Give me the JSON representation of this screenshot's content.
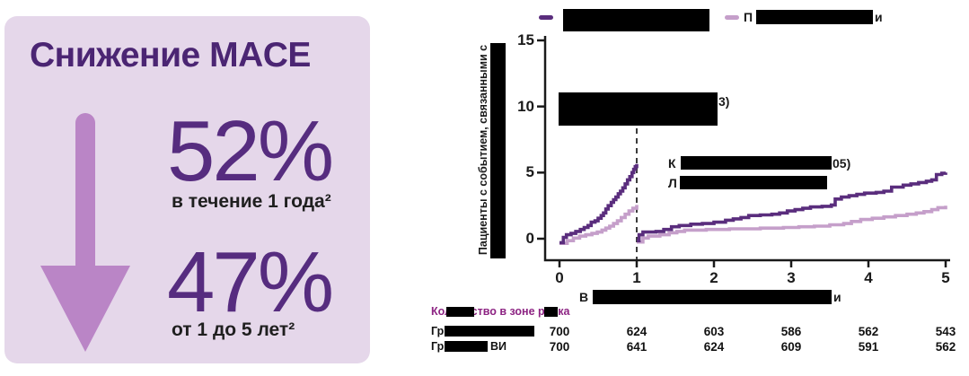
{
  "panel": {
    "title": "Снижение MACE",
    "stats": [
      {
        "value": "52%",
        "caption": "в течение 1 года²"
      },
      {
        "value": "47%",
        "caption": "от 1 до 5 лет²"
      }
    ],
    "colors": {
      "background": "#e5d7ea",
      "title": "#4b2573",
      "arrow": "#ba85c6",
      "value": "#562c7f"
    }
  },
  "chart_data": {
    "type": "line",
    "style": "kaplan-meier-cumulative-incidence-steps",
    "xlim": [
      0,
      5
    ],
    "ylim": [
      0,
      15
    ],
    "xticks": [
      0,
      1,
      2,
      3,
      4,
      5
    ],
    "yticks": [
      0,
      5,
      10,
      15
    ],
    "landmark_x": 1,
    "grid": false,
    "ylabel_visible": "Пациенты с событием, связанными с",
    "ylabel_partially_redacted": true,
    "xlabel_visible_start": "В",
    "xlabel_visible_end": "и",
    "xlabel_partially_redacted": true,
    "legend_position": "top",
    "legend": [
      {
        "name": "dark-series",
        "color": "#5a2d7d",
        "label_redacted": true,
        "label_visible_start": "",
        "label_visible_end": "",
        "lines": 2
      },
      {
        "name": "light-series",
        "color": "#c59fca",
        "label_redacted": true,
        "label_visible_start": "П",
        "label_visible_end": "и",
        "lines": 1
      }
    ],
    "annotations": [
      {
        "lines": 2,
        "redacted": true,
        "line1_prefix": "",
        "line1_suffix": "3)",
        "line2_prefix": ""
      },
      {
        "lines": 2,
        "redacted": true,
        "line1_prefix": "К",
        "line1_suffix": "05)",
        "line2_prefix": "Л"
      }
    ],
    "series": [
      {
        "name": "dark-series",
        "color": "#5a2d7d",
        "segments": [
          [
            [
              0,
              -0.3
            ],
            [
              0.05,
              0.1
            ],
            [
              0.09,
              0.3
            ],
            [
              0.15,
              0.4
            ],
            [
              0.21,
              0.55
            ],
            [
              0.27,
              0.7
            ],
            [
              0.32,
              0.85
            ],
            [
              0.37,
              1.0
            ],
            [
              0.41,
              1.25
            ],
            [
              0.46,
              1.35
            ],
            [
              0.5,
              1.55
            ],
            [
              0.54,
              1.75
            ],
            [
              0.57,
              1.95
            ],
            [
              0.6,
              2.25
            ],
            [
              0.63,
              2.5
            ],
            [
              0.67,
              2.75
            ],
            [
              0.7,
              2.95
            ],
            [
              0.73,
              3.15
            ],
            [
              0.76,
              3.4
            ],
            [
              0.79,
              3.6
            ],
            [
              0.82,
              3.85
            ],
            [
              0.85,
              4.15
            ],
            [
              0.88,
              4.45
            ],
            [
              0.91,
              4.7
            ],
            [
              0.94,
              5.0
            ],
            [
              0.96,
              5.25
            ],
            [
              0.98,
              5.45
            ],
            [
              1,
              5.65
            ]
          ],
          [
            [
              1,
              -0.15
            ],
            [
              1.03,
              0.3
            ],
            [
              1.08,
              0.5
            ],
            [
              1.25,
              0.55
            ],
            [
              1.35,
              0.7
            ],
            [
              1.45,
              0.9
            ],
            [
              1.55,
              1.0
            ],
            [
              1.7,
              1.1
            ],
            [
              1.85,
              1.15
            ],
            [
              2.0,
              1.25
            ],
            [
              2.15,
              1.4
            ],
            [
              2.25,
              1.5
            ],
            [
              2.35,
              1.6
            ],
            [
              2.45,
              1.75
            ],
            [
              2.6,
              1.8
            ],
            [
              2.75,
              1.85
            ],
            [
              2.85,
              1.95
            ],
            [
              2.95,
              2.1
            ],
            [
              3.05,
              2.2
            ],
            [
              3.15,
              2.3
            ],
            [
              3.25,
              2.4
            ],
            [
              3.4,
              2.45
            ],
            [
              3.52,
              2.55
            ],
            [
              3.57,
              3.0
            ],
            [
              3.65,
              3.15
            ],
            [
              3.75,
              3.25
            ],
            [
              3.85,
              3.35
            ],
            [
              3.95,
              3.45
            ],
            [
              4.1,
              3.5
            ],
            [
              4.2,
              3.6
            ],
            [
              4.3,
              3.9
            ],
            [
              4.45,
              4.05
            ],
            [
              4.55,
              4.15
            ],
            [
              4.65,
              4.25
            ],
            [
              4.75,
              4.35
            ],
            [
              4.82,
              4.45
            ],
            [
              4.88,
              4.85
            ],
            [
              4.95,
              4.95
            ],
            [
              5,
              5.0
            ]
          ]
        ]
      },
      {
        "name": "light-series",
        "color": "#c59fca",
        "segments": [
          [
            [
              0,
              -0.35
            ],
            [
              0.1,
              -0.15
            ],
            [
              0.18,
              0.05
            ],
            [
              0.26,
              0.2
            ],
            [
              0.34,
              0.3
            ],
            [
              0.42,
              0.4
            ],
            [
              0.49,
              0.5
            ],
            [
              0.55,
              0.65
            ],
            [
              0.6,
              0.8
            ],
            [
              0.65,
              0.95
            ],
            [
              0.7,
              1.15
            ],
            [
              0.75,
              1.35
            ],
            [
              0.8,
              1.6
            ],
            [
              0.85,
              1.85
            ],
            [
              0.9,
              2.1
            ],
            [
              0.95,
              2.3
            ],
            [
              1,
              2.55
            ]
          ],
          [
            [
              1,
              -0.25
            ],
            [
              1.08,
              0.05
            ],
            [
              1.15,
              0.2
            ],
            [
              1.3,
              0.3
            ],
            [
              1.42,
              0.45
            ],
            [
              1.52,
              0.55
            ],
            [
              1.62,
              0.65
            ],
            [
              1.9,
              0.7
            ],
            [
              2.2,
              0.75
            ],
            [
              2.6,
              0.8
            ],
            [
              2.9,
              0.85
            ],
            [
              3.1,
              0.9
            ],
            [
              3.3,
              0.95
            ],
            [
              3.5,
              1.05
            ],
            [
              3.68,
              1.15
            ],
            [
              3.78,
              1.3
            ],
            [
              3.9,
              1.45
            ],
            [
              4.05,
              1.55
            ],
            [
              4.2,
              1.65
            ],
            [
              4.35,
              1.75
            ],
            [
              4.5,
              1.85
            ],
            [
              4.62,
              1.95
            ],
            [
              4.72,
              2.05
            ],
            [
              4.82,
              2.2
            ],
            [
              4.9,
              2.35
            ],
            [
              5,
              2.5
            ]
          ]
        ]
      }
    ]
  },
  "risk_table": {
    "title": "Количество в зоне риска",
    "title_color": "#8d2483",
    "rows": [
      {
        "label_visible_start": "Гр",
        "label_visible_end": "",
        "values": [
          700,
          624,
          603,
          586,
          562,
          543
        ]
      },
      {
        "label_visible_start": "Гр",
        "label_visible_end": "ВИ",
        "values": [
          700,
          641,
          624,
          609,
          591,
          562
        ]
      }
    ]
  }
}
